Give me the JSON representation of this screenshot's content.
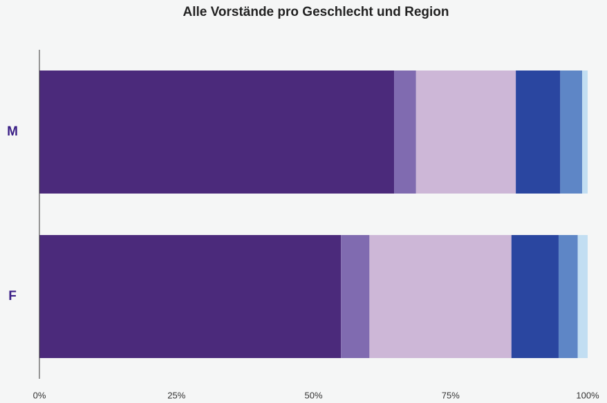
{
  "chart_data": {
    "type": "stacked-barh",
    "title": "Alle Vorstände pro Geschlecht und Region",
    "categories": [
      "M",
      "F"
    ],
    "series": [
      {
        "color": "#4b2a7b",
        "values": [
          64.7,
          55.0
        ]
      },
      {
        "color": "#806bb0",
        "values": [
          4.0,
          5.2
        ]
      },
      {
        "color": "#cdb7d7",
        "values": [
          18.2,
          25.9
        ]
      },
      {
        "color": "#2a46a0",
        "values": [
          8.1,
          8.6
        ]
      },
      {
        "color": "#5e86c6",
        "values": [
          4.0,
          3.5
        ]
      },
      {
        "color": "#c2def2",
        "values": [
          1.0,
          1.8
        ]
      }
    ],
    "xlim": [
      0,
      100
    ],
    "xticks": [
      {
        "value": 0,
        "label": "0%"
      },
      {
        "value": 25,
        "label": "25%"
      },
      {
        "value": 50,
        "label": "50%"
      },
      {
        "value": 75,
        "label": "75%"
      },
      {
        "value": 100,
        "label": "100%"
      }
    ]
  }
}
